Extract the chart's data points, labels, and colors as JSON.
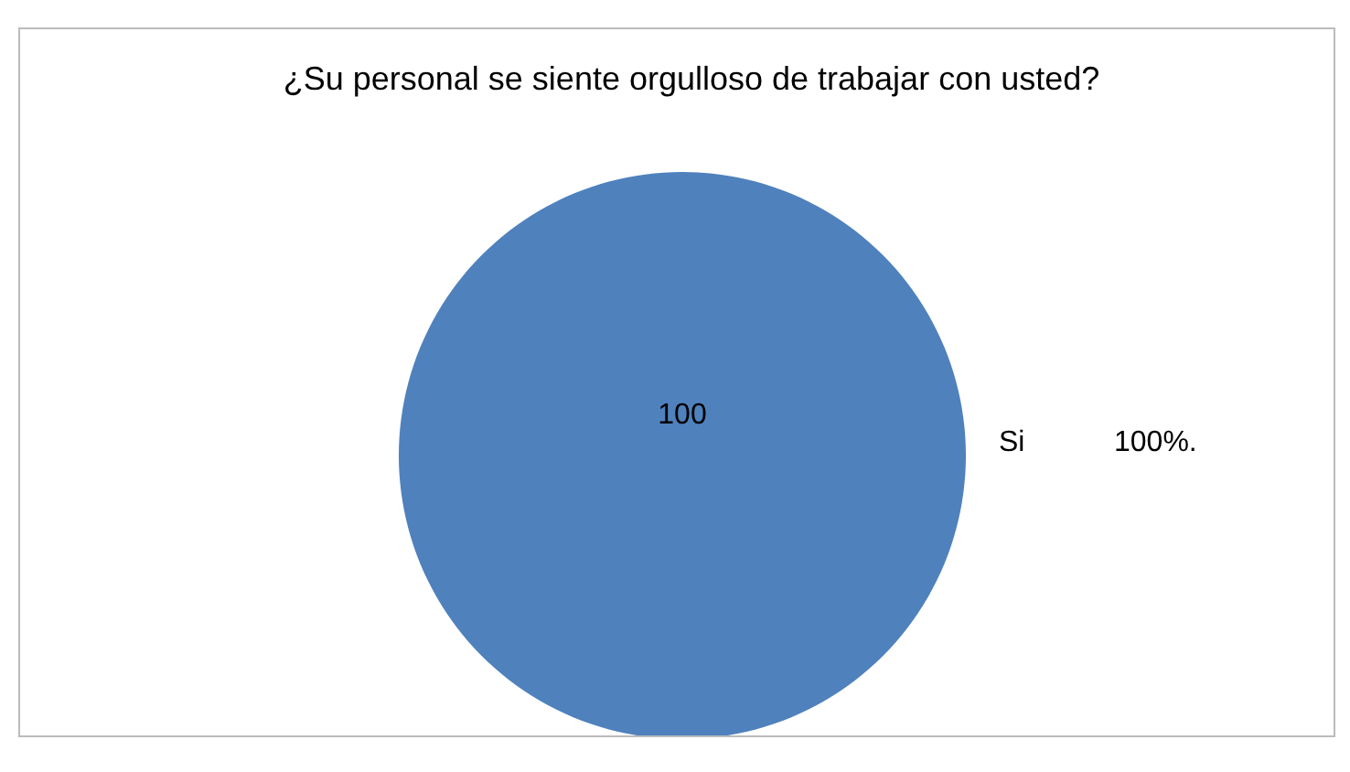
{
  "chart_data": {
    "type": "pie",
    "title": "¿Su personal se siente orgulloso de trabajar con usted?",
    "categories": [
      "Si"
    ],
    "values": [
      100
    ],
    "colors": [
      "#4f81bd"
    ],
    "data_labels": true,
    "annotations": [
      "100%."
    ]
  }
}
